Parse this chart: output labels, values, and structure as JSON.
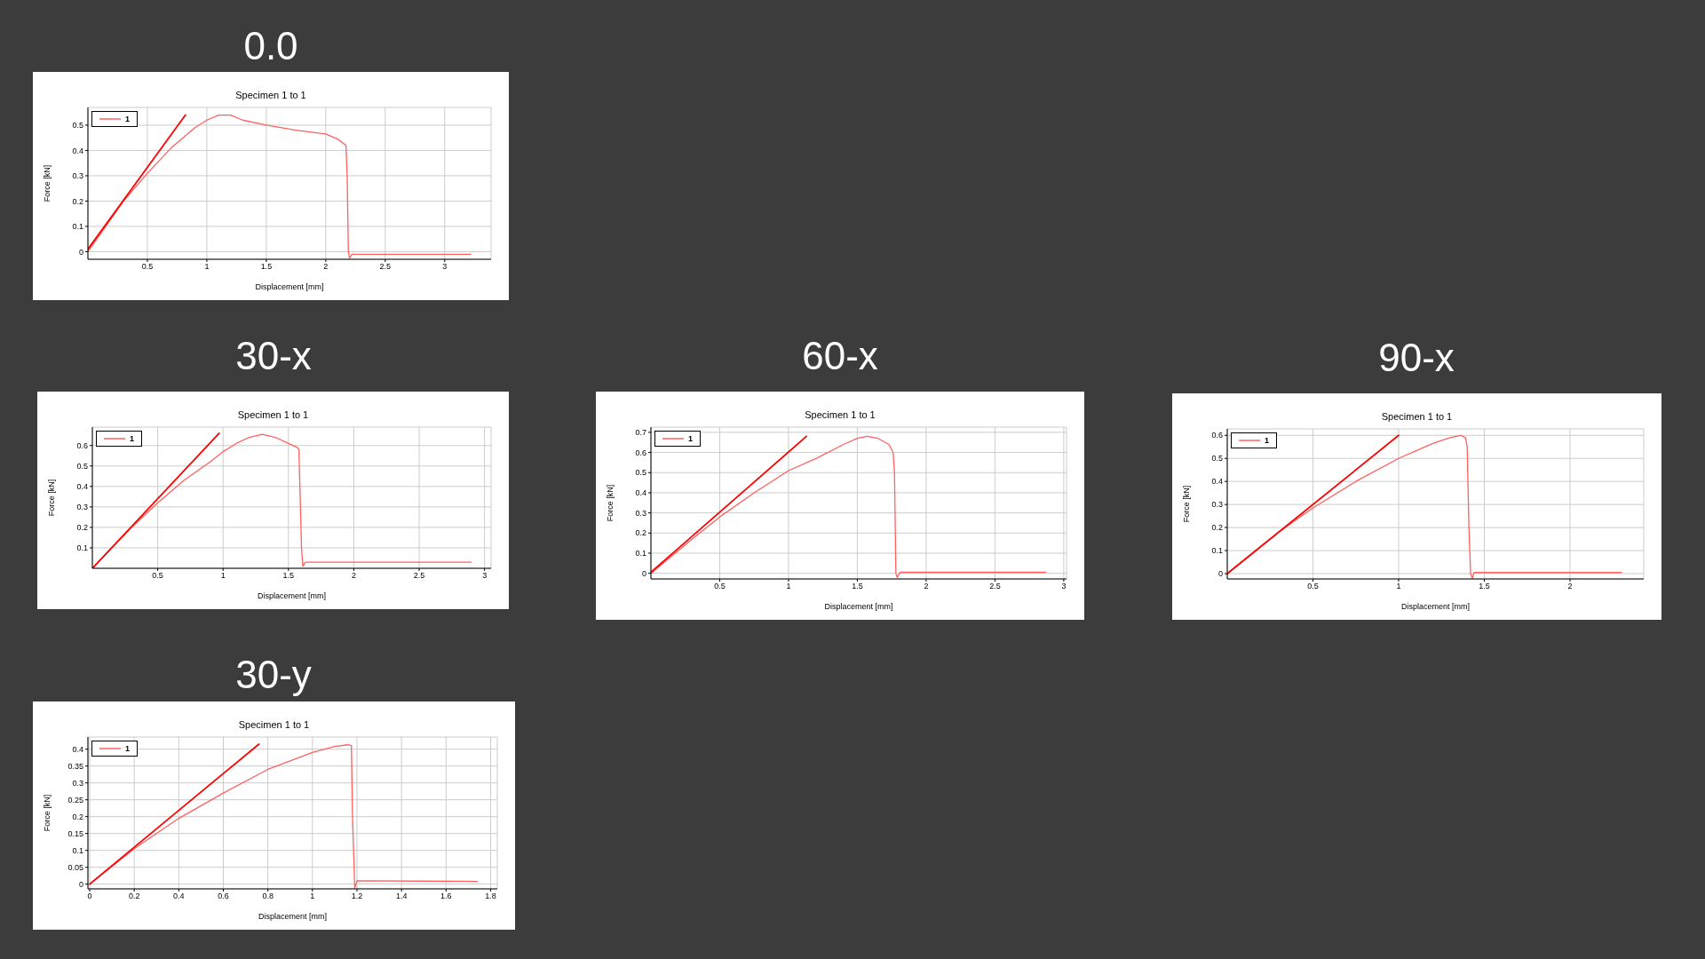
{
  "chart_data": [
    {
      "type": "line",
      "title": "0.0",
      "subtitle": "Specimen 1 to 1",
      "xlabel": "Displacement [mm]",
      "ylabel": "Force [kN]",
      "xlim": [
        0,
        3.39
      ],
      "xticks": [
        0.5,
        1,
        1.5,
        2,
        2.5,
        3
      ],
      "ylim": [
        -0.03,
        0.57
      ],
      "yticks": [
        0,
        0.1,
        0.2,
        0.3,
        0.4,
        0.5
      ],
      "grid": true,
      "legend": "top left",
      "marker": "none",
      "line_style": "solid",
      "series": [
        {
          "name": "1",
          "color": "#ff6060",
          "x": [
            0,
            0.3,
            0.5,
            0.7,
            0.9,
            1.0,
            1.1,
            1.2,
            1.3,
            1.5,
            1.75,
            2.0,
            2.1,
            2.17,
            2.18,
            2.19,
            2.2,
            2.22,
            3.22
          ],
          "values": [
            0,
            0.2,
            0.31,
            0.41,
            0.49,
            0.52,
            0.54,
            0.54,
            0.52,
            0.5,
            0.48,
            0.465,
            0.445,
            0.42,
            0.3,
            0,
            -0.025,
            -0.01,
            -0.01
          ]
        },
        {
          "type": "line",
          "color": "#ff0000",
          "x": [
            0,
            0.82
          ],
          "values": [
            0.01,
            0.54
          ]
        }
      ]
    },
    {
      "type": "line",
      "title": "30-x",
      "subtitle": "Specimen 1 to 1",
      "xlabel": "Displacement [mm]",
      "ylabel": "Force [kN]",
      "xlim": [
        0,
        3.05
      ],
      "xticks": [
        0.5,
        1,
        1.5,
        2,
        2.5,
        3
      ],
      "ylim": [
        0,
        0.69
      ],
      "yticks": [
        0.1,
        0.2,
        0.3,
        0.4,
        0.5,
        0.6
      ],
      "grid": true,
      "legend": "top left",
      "marker": "none",
      "line_style": "solid",
      "series": [
        {
          "name": "1",
          "color": "#ff6060",
          "x": [
            0,
            0.3,
            0.5,
            0.7,
            0.9,
            1.0,
            1.1,
            1.2,
            1.3,
            1.4,
            1.5,
            1.57,
            1.58,
            1.6,
            1.61,
            1.63,
            2.9
          ],
          "values": [
            0,
            0.2,
            0.32,
            0.43,
            0.52,
            0.57,
            0.61,
            0.64,
            0.655,
            0.64,
            0.61,
            0.59,
            0.58,
            0.1,
            0.01,
            0.03,
            0.03
          ]
        },
        {
          "type": "line",
          "color": "#ff0000",
          "x": [
            0,
            0.97
          ],
          "values": [
            0,
            0.66
          ]
        }
      ]
    },
    {
      "type": "line",
      "title": "60-x",
      "subtitle": "Specimen 1 to 1",
      "xlabel": "Displacement [mm]",
      "ylabel": "Force [kN]",
      "xlim": [
        0,
        3.02
      ],
      "xticks": [
        0.5,
        1,
        1.5,
        2,
        2.5,
        3
      ],
      "ylim": [
        -0.028,
        0.726
      ],
      "yticks": [
        0,
        0.1,
        0.2,
        0.3,
        0.4,
        0.5,
        0.6,
        0.7
      ],
      "grid": true,
      "legend": "top left",
      "marker": "none",
      "line_style": "solid",
      "series": [
        {
          "name": "1",
          "color": "#ff6060",
          "x": [
            0,
            0.3,
            0.5,
            0.75,
            1.0,
            1.2,
            1.4,
            1.5,
            1.57,
            1.65,
            1.73,
            1.76,
            1.77,
            1.78,
            1.79,
            1.81,
            2.87
          ],
          "values": [
            0,
            0.17,
            0.28,
            0.4,
            0.51,
            0.57,
            0.64,
            0.67,
            0.68,
            0.67,
            0.64,
            0.6,
            0.5,
            0,
            -0.02,
            0.005,
            0.005
          ]
        },
        {
          "type": "line",
          "color": "#ff0000",
          "x": [
            0,
            1.13
          ],
          "values": [
            0.005,
            0.68
          ]
        }
      ]
    },
    {
      "type": "line",
      "title": "90-x",
      "subtitle": "Specimen 1 to 1",
      "xlabel": "Displacement [mm]",
      "ylabel": "Force [kN]",
      "xlim": [
        0,
        2.43
      ],
      "xticks": [
        0.5,
        1,
        1.5,
        2
      ],
      "ylim": [
        -0.023,
        0.628
      ],
      "yticks": [
        0,
        0.1,
        0.2,
        0.3,
        0.4,
        0.5,
        0.6
      ],
      "grid": true,
      "legend": "top left",
      "marker": "none",
      "line_style": "solid",
      "series": [
        {
          "name": "1",
          "color": "#ff6060",
          "x": [
            0,
            0.3,
            0.5,
            0.75,
            1.0,
            1.2,
            1.3,
            1.36,
            1.39,
            1.4,
            1.41,
            1.42,
            1.43,
            1.44,
            2.3
          ],
          "values": [
            0,
            0.18,
            0.285,
            0.4,
            0.5,
            0.565,
            0.59,
            0.6,
            0.59,
            0.55,
            0.2,
            0,
            -0.02,
            0.005,
            0.005
          ]
        },
        {
          "type": "line",
          "color": "#ff0000",
          "x": [
            0,
            1.0
          ],
          "values": [
            0,
            0.6
          ]
        }
      ]
    },
    {
      "type": "line",
      "title": "30-y",
      "subtitle": "Specimen 1 to 1",
      "xlabel": "Displacement [mm]",
      "ylabel": "Force [kN]",
      "xlim": [
        -0.008,
        1.83
      ],
      "xticks": [
        0,
        0.2,
        0.4,
        0.6,
        0.8,
        1,
        1.2,
        1.4,
        1.6,
        1.8
      ],
      "ylim": [
        -0.014,
        0.436
      ],
      "yticks": [
        0,
        0.05,
        0.1,
        0.15,
        0.2,
        0.25,
        0.3,
        0.35,
        0.4
      ],
      "grid": true,
      "legend": "top left",
      "marker": "none",
      "line_style": "solid",
      "series": [
        {
          "name": "1",
          "color": "#ff6060",
          "x": [
            0,
            0.2,
            0.4,
            0.6,
            0.8,
            1.0,
            1.1,
            1.16,
            1.175,
            1.18,
            1.19,
            1.2,
            1.74
          ],
          "values": [
            0,
            0.105,
            0.195,
            0.27,
            0.34,
            0.39,
            0.408,
            0.413,
            0.41,
            0.2,
            -0.012,
            0.01,
            0.008
          ]
        },
        {
          "type": "line",
          "color": "#ff0000",
          "x": [
            0,
            0.76
          ],
          "values": [
            0,
            0.415
          ]
        }
      ]
    }
  ]
}
